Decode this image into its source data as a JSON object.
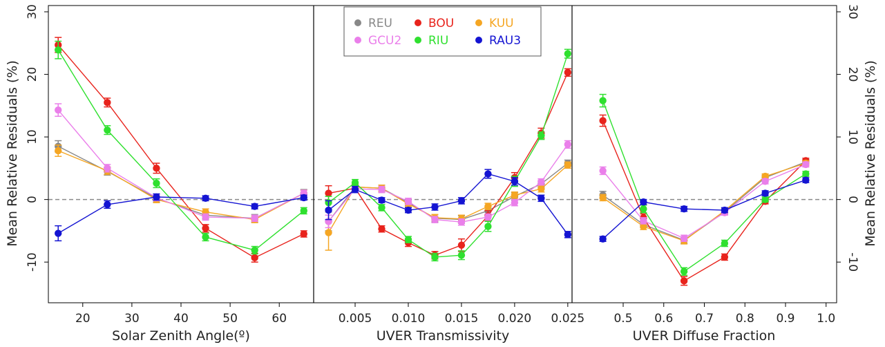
{
  "chart_data": {
    "type": "line",
    "y_axis": {
      "label": "Mean Relative Residuals (%)",
      "ylim": [
        -16.5,
        31
      ],
      "ticks": [
        -10,
        0,
        10,
        20,
        30
      ],
      "tick_labels": [
        "-10",
        "0",
        "10",
        "20",
        "30"
      ],
      "reference_line": 0
    },
    "legend": {
      "placement": "top-center",
      "entries": [
        {
          "name": "REU",
          "color": "#888888"
        },
        {
          "name": "BOU",
          "color": "#e8231c"
        },
        {
          "name": "KUU",
          "color": "#f5a623"
        },
        {
          "name": "GCU2",
          "color": "#ea7fea"
        },
        {
          "name": "RIU",
          "color": "#2fe02f"
        },
        {
          "name": "RAU3",
          "color": "#1414d2"
        }
      ]
    },
    "panels": [
      {
        "xlabel": "Solar Zenith Angle(º)",
        "xlim": [
          13,
          67
        ],
        "xticks": [
          20,
          30,
          40,
          50,
          60
        ],
        "xtick_labels": [
          "20",
          "30",
          "40",
          "50",
          "60"
        ],
        "x": [
          15,
          25,
          35,
          45,
          55,
          65
        ],
        "series": [
          {
            "name": "REU",
            "values": [
              8.5,
              4.5,
              0.2,
              -2.5,
              -3.0,
              1.0
            ],
            "err": [
              0.9,
              0.6,
              0.6,
              0.6,
              0.6,
              0.6
            ]
          },
          {
            "name": "BOU",
            "values": [
              24.7,
              15.5,
              5.0,
              -4.6,
              -9.3,
              -5.5
            ],
            "err": [
              1.2,
              0.7,
              0.8,
              0.6,
              0.7,
              0.5
            ]
          },
          {
            "name": "KUU",
            "values": [
              7.8,
              4.6,
              0.0,
              -2.0,
              -3.2,
              1.0
            ],
            "err": [
              0.9,
              0.6,
              0.5,
              0.5,
              0.5,
              0.5
            ]
          },
          {
            "name": "GCU2",
            "values": [
              14.3,
              5.0,
              0.3,
              -2.8,
              -3.0,
              1.0
            ],
            "err": [
              1.0,
              0.6,
              0.5,
              0.5,
              0.5,
              0.5
            ]
          },
          {
            "name": "RIU",
            "values": [
              23.9,
              11.1,
              2.6,
              -6.0,
              -8.1,
              -1.8
            ],
            "err": [
              1.4,
              0.7,
              0.7,
              0.6,
              0.6,
              0.5
            ]
          },
          {
            "name": "RAU3",
            "values": [
              -5.4,
              -0.8,
              0.4,
              0.2,
              -1.1,
              0.3
            ],
            "err": [
              1.2,
              0.6,
              0.5,
              0.4,
              0.4,
              0.4
            ]
          }
        ]
      },
      {
        "xlabel": "UVER Transmissivity",
        "xlim": [
          0.0011,
          0.0254
        ],
        "xticks": [
          0.005,
          0.01,
          0.015,
          0.02,
          0.025
        ],
        "xtick_labels": [
          "0.005",
          "0.010",
          "0.015",
          "0.020",
          "0.025"
        ],
        "x": [
          0.0025,
          0.005,
          0.0075,
          0.01,
          0.0125,
          0.015,
          0.0175,
          0.02,
          0.0225,
          0.025
        ],
        "series": [
          {
            "name": "REU",
            "values": [
              -3.5,
              2.0,
              1.8,
              -0.5,
              -3.0,
              -3.2,
              -1.8,
              0.5,
              2.5,
              5.8
            ],
            "err": [
              1.5,
              0.5,
              0.5,
              0.5,
              0.6,
              0.6,
              0.6,
              0.6,
              0.5,
              0.5
            ]
          },
          {
            "name": "BOU",
            "values": [
              1.0,
              1.8,
              -4.7,
              -6.9,
              -8.9,
              -7.3,
              -2.6,
              3.5,
              10.6,
              20.3
            ],
            "err": [
              1.2,
              0.6,
              0.5,
              0.6,
              0.6,
              1.0,
              0.8,
              0.8,
              0.8,
              0.6
            ]
          },
          {
            "name": "KUU",
            "values": [
              -5.3,
              2.0,
              1.8,
              -0.7,
              -2.9,
              -3.1,
              -1.1,
              0.7,
              1.7,
              5.5
            ],
            "err": [
              2.8,
              0.5,
              0.5,
              0.5,
              0.5,
              0.6,
              0.5,
              0.5,
              0.5,
              0.5
            ]
          },
          {
            "name": "GCU2",
            "values": [
              -3.5,
              1.7,
              1.6,
              -0.3,
              -3.2,
              -3.6,
              -2.8,
              -0.5,
              2.8,
              8.8
            ],
            "err": [
              1.0,
              0.5,
              0.5,
              0.5,
              0.5,
              0.5,
              0.5,
              0.5,
              0.5,
              0.6
            ]
          },
          {
            "name": "RIU",
            "values": [
              -0.5,
              2.7,
              -1.3,
              -6.4,
              -9.2,
              -8.9,
              -4.3,
              2.9,
              10.2,
              23.3
            ],
            "err": [
              1.0,
              0.5,
              0.5,
              0.5,
              0.6,
              0.7,
              0.8,
              0.8,
              0.6,
              0.7
            ]
          },
          {
            "name": "RAU3",
            "values": [
              -1.7,
              1.6,
              -0.1,
              -1.7,
              -1.2,
              -0.2,
              4.1,
              2.9,
              0.2,
              -5.6
            ],
            "err": [
              1.5,
              0.5,
              0.4,
              0.4,
              0.5,
              0.5,
              0.7,
              0.6,
              0.5,
              0.5
            ]
          }
        ]
      },
      {
        "xlabel": "UVER Diffuse Fraction",
        "xlim": [
          0.374,
          1.026
        ],
        "xticks": [
          0.5,
          0.6,
          0.7,
          0.8,
          0.9,
          1.0
        ],
        "xtick_labels": [
          "0.5",
          "0.6",
          "0.7",
          "0.8",
          "0.9",
          "1.0"
        ],
        "x": [
          0.45,
          0.55,
          0.65,
          0.75,
          0.85,
          0.95
        ],
        "series": [
          {
            "name": "REU",
            "values": [
              0.7,
              -4.0,
              -6.5,
              -2.0,
              3.5,
              6.0
            ],
            "err": [
              0.6,
              0.5,
              0.5,
              0.4,
              0.4,
              0.4
            ]
          },
          {
            "name": "BOU",
            "values": [
              12.6,
              -2.9,
              -13.0,
              -9.2,
              -0.3,
              6.2
            ],
            "err": [
              0.9,
              0.6,
              0.7,
              0.5,
              0.4,
              0.4
            ]
          },
          {
            "name": "KUU",
            "values": [
              0.3,
              -4.3,
              -6.6,
              -1.8,
              3.7,
              5.8
            ],
            "err": [
              0.5,
              0.5,
              0.5,
              0.4,
              0.4,
              0.4
            ]
          },
          {
            "name": "GCU2",
            "values": [
              4.6,
              -3.4,
              -6.2,
              -2.1,
              2.9,
              5.6
            ],
            "err": [
              0.6,
              0.5,
              0.5,
              0.4,
              0.4,
              0.4
            ]
          },
          {
            "name": "RIU",
            "values": [
              15.8,
              -1.5,
              -11.5,
              -7.0,
              0.0,
              4.1
            ],
            "err": [
              1.0,
              0.6,
              0.6,
              0.5,
              0.4,
              0.4
            ]
          },
          {
            "name": "RAU3",
            "values": [
              -6.3,
              -0.4,
              -1.5,
              -1.7,
              1.0,
              3.1
            ],
            "err": [
              0.4,
              0.4,
              0.4,
              0.4,
              0.4,
              0.4
            ]
          }
        ]
      }
    ]
  }
}
